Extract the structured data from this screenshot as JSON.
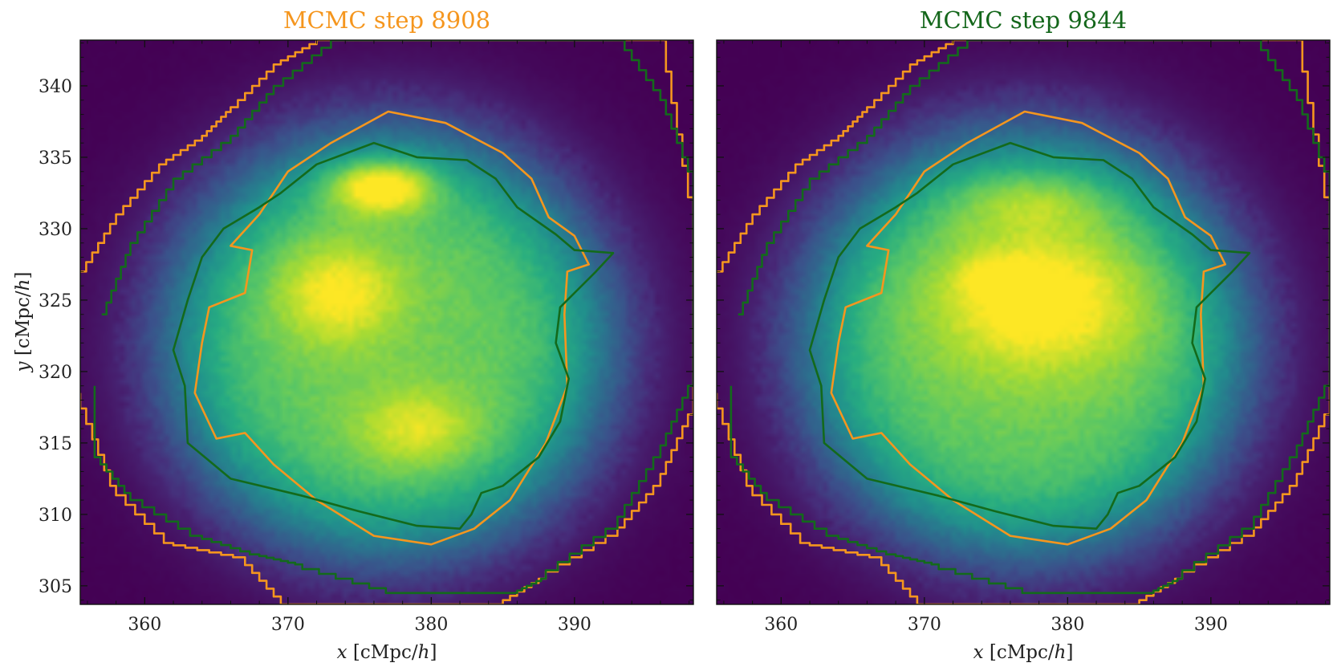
{
  "chart_data": [
    {
      "type": "heatmap",
      "title": "MCMC step 8908",
      "title_color": "#f5961e",
      "xlabel_var": "x",
      "xlabel_unit_pre": " [cMpc/",
      "xlabel_unit_h": "h",
      "xlabel_unit_post": "]",
      "ylabel_var": "y",
      "ylabel_unit_pre": " [cMpc/",
      "ylabel_unit_h": "h",
      "ylabel_unit_post": "]",
      "xlim": [
        355.5,
        398.3
      ],
      "ylim": [
        303.7,
        343.2
      ],
      "xticks": [
        360,
        370,
        380,
        390
      ],
      "xtick_labels": [
        "360",
        "370",
        "380",
        "390"
      ],
      "yticks": [
        305,
        310,
        315,
        320,
        325,
        330,
        335,
        340
      ],
      "ytick_labels": [
        "305",
        "310",
        "315",
        "320",
        "325",
        "330",
        "335",
        "340"
      ],
      "colormap": "viridis",
      "blobs": [
        {
          "x": 377.0,
          "y": 322.0,
          "sx": 12.0,
          "sy": 11.5,
          "w": 1.0
        },
        {
          "x": 376.5,
          "y": 333.0,
          "sx": 2.5,
          "sy": 1.3,
          "w": 0.45
        },
        {
          "x": 373.5,
          "y": 325.5,
          "sx": 3.0,
          "sy": 2.5,
          "w": 0.25
        },
        {
          "x": 379.0,
          "y": 316.0,
          "sx": 3.0,
          "sy": 2.0,
          "w": 0.2
        }
      ],
      "contours": [
        {
          "name": "inner-orange",
          "color": "#f5961e",
          "points": [
            [
              373,
              336
            ],
            [
              377,
              338.2
            ],
            [
              381,
              337.4
            ],
            [
              385,
              335.3
            ],
            [
              387,
              333.5
            ],
            [
              388.2,
              330.8
            ],
            [
              390,
              329.5
            ],
            [
              391,
              327.5
            ],
            [
              389.5,
              327
            ],
            [
              389.3,
              324
            ],
            [
              389.5,
              319
            ],
            [
              388,
              315
            ],
            [
              385.5,
              311
            ],
            [
              383,
              309
            ],
            [
              380,
              307.9
            ],
            [
              376,
              308.5
            ],
            [
              372,
              311
            ],
            [
              369,
              313.5
            ],
            [
              367,
              315.7
            ],
            [
              365,
              315.3
            ],
            [
              363.5,
              318.5
            ],
            [
              364,
              322
            ],
            [
              364.5,
              324.5
            ],
            [
              367,
              325.5
            ],
            [
              367.5,
              328.5
            ],
            [
              366,
              328.8
            ],
            [
              368,
              331
            ],
            [
              370,
              334
            ]
          ]
        },
        {
          "name": "inner-green",
          "color": "#136a1b",
          "points": [
            [
              372,
              334.5
            ],
            [
              376,
              336
            ],
            [
              379,
              335
            ],
            [
              382.5,
              334.8
            ],
            [
              384.5,
              333.5
            ],
            [
              386,
              331.5
            ],
            [
              388.7,
              329.6
            ],
            [
              390,
              328.5
            ],
            [
              392.7,
              328.3
            ],
            [
              391.5,
              327
            ],
            [
              390,
              325.5
            ],
            [
              389,
              324.5
            ],
            [
              388.7,
              322
            ],
            [
              389.6,
              319.5
            ],
            [
              389,
              316.5
            ],
            [
              387.5,
              314
            ],
            [
              385,
              312
            ],
            [
              383.5,
              311.5
            ],
            [
              382.8,
              310
            ],
            [
              382,
              309
            ],
            [
              379,
              309.2
            ],
            [
              375,
              310.2
            ],
            [
              371,
              311.3
            ],
            [
              366,
              312.5
            ],
            [
              363,
              315
            ],
            [
              362.8,
              319
            ],
            [
              362,
              321.5
            ],
            [
              363,
              325
            ],
            [
              364,
              328
            ],
            [
              365.5,
              330
            ],
            [
              368,
              331.5
            ],
            [
              369.5,
              332.5
            ]
          ]
        },
        {
          "name": "outer-orange",
          "color": "#f5961e",
          "points": [
            [
              355.5,
              327
            ],
            [
              358,
              331
            ],
            [
              361,
              334.5
            ],
            [
              364,
              336.5
            ],
            [
              366,
              338.5
            ],
            [
              369,
              341.5
            ],
            [
              372,
              343.2
            ],
            [
              396,
              343.2
            ],
            [
              398.3,
              330
            ],
            [
              398.3,
              317
            ],
            [
              396,
              312
            ],
            [
              393,
              308.5
            ],
            [
              388,
              305.5
            ],
            [
              385,
              303.7
            ],
            [
              370,
              303.7
            ],
            [
              367,
              307
            ],
            [
              362,
              308
            ],
            [
              358,
              312
            ],
            [
              355.5,
              318.5
            ]
          ]
        },
        {
          "name": "outer-green",
          "color": "#136a1b",
          "points": [
            [
              357,
              324
            ],
            [
              359,
              329
            ],
            [
              362,
              333.5
            ],
            [
              366,
              336.5
            ],
            [
              369,
              340
            ],
            [
              373,
              343.2
            ],
            [
              393,
              343.2
            ],
            [
              396,
              339
            ],
            [
              398.3,
              333
            ],
            [
              398.3,
              319
            ],
            [
              396,
              314
            ],
            [
              393,
              309
            ],
            [
              388,
              305.5
            ],
            [
              386,
              304.5
            ],
            [
              378,
              304.5
            ],
            [
              371,
              306.5
            ],
            [
              368,
              307.2
            ],
            [
              364,
              308.5
            ],
            [
              359,
              311.5
            ],
            [
              356.5,
              314.5
            ],
            [
              356.5,
              319
            ]
          ]
        }
      ]
    },
    {
      "type": "heatmap",
      "title": "MCMC step 9844",
      "title_color": "#13661a",
      "xlabel_var": "x",
      "xlabel_unit_pre": " [cMpc/",
      "xlabel_unit_h": "h",
      "xlabel_unit_post": "]",
      "xlim": [
        355.5,
        398.3
      ],
      "ylim": [
        303.7,
        343.2
      ],
      "xticks": [
        360,
        370,
        380,
        390
      ],
      "xtick_labels": [
        "360",
        "370",
        "380",
        "390"
      ],
      "yticks": [
        305,
        310,
        315,
        320,
        325,
        330,
        335,
        340
      ],
      "colormap": "viridis",
      "blobs": [
        {
          "x": 377.0,
          "y": 322.0,
          "sx": 12.0,
          "sy": 11.5,
          "w": 1.0
        },
        {
          "x": 378.0,
          "y": 325.0,
          "sx": 5.0,
          "sy": 3.5,
          "w": 0.3
        },
        {
          "x": 375.0,
          "y": 326.5,
          "sx": 1.5,
          "sy": 0.8,
          "w": 0.2
        },
        {
          "x": 377.5,
          "y": 332.0,
          "sx": 4.0,
          "sy": 1.5,
          "w": 0.15
        }
      ],
      "contours": [
        {
          "name": "inner-orange",
          "color": "#f5961e",
          "points": [
            [
              373,
              336
            ],
            [
              377,
              338.2
            ],
            [
              381,
              337.4
            ],
            [
              385,
              335.3
            ],
            [
              387,
              333.5
            ],
            [
              388.2,
              330.8
            ],
            [
              390,
              329.5
            ],
            [
              391,
              327.5
            ],
            [
              389.5,
              327
            ],
            [
              389.3,
              324
            ],
            [
              389.5,
              319
            ],
            [
              388,
              315
            ],
            [
              385.5,
              311
            ],
            [
              383,
              309
            ],
            [
              380,
              307.9
            ],
            [
              376,
              308.5
            ],
            [
              372,
              311
            ],
            [
              369,
              313.5
            ],
            [
              367,
              315.7
            ],
            [
              365,
              315.3
            ],
            [
              363.5,
              318.5
            ],
            [
              364,
              322
            ],
            [
              364.5,
              324.5
            ],
            [
              367,
              325.5
            ],
            [
              367.5,
              328.5
            ],
            [
              366,
              328.8
            ],
            [
              368,
              331
            ],
            [
              370,
              334
            ]
          ]
        },
        {
          "name": "inner-green",
          "color": "#136a1b",
          "points": [
            [
              372,
              334.5
            ],
            [
              376,
              336
            ],
            [
              379,
              335
            ],
            [
              382.5,
              334.8
            ],
            [
              384.5,
              333.5
            ],
            [
              386,
              331.5
            ],
            [
              388.7,
              329.6
            ],
            [
              390,
              328.5
            ],
            [
              392.7,
              328.3
            ],
            [
              391.5,
              327
            ],
            [
              390,
              325.5
            ],
            [
              389,
              324.5
            ],
            [
              388.7,
              322
            ],
            [
              389.6,
              319.5
            ],
            [
              389,
              316.5
            ],
            [
              387.5,
              314
            ],
            [
              385,
              312
            ],
            [
              383.5,
              311.5
            ],
            [
              382.8,
              310
            ],
            [
              382,
              309
            ],
            [
              379,
              309.2
            ],
            [
              375,
              310.2
            ],
            [
              371,
              311.3
            ],
            [
              366,
              312.5
            ],
            [
              363,
              315
            ],
            [
              362.8,
              319
            ],
            [
              362,
              321.5
            ],
            [
              363,
              325
            ],
            [
              364,
              328
            ],
            [
              365.5,
              330
            ],
            [
              368,
              331.5
            ],
            [
              369.5,
              332.5
            ]
          ]
        },
        {
          "name": "outer-orange",
          "color": "#f5961e",
          "points": [
            [
              355.5,
              327
            ],
            [
              358,
              331
            ],
            [
              361,
              334.5
            ],
            [
              364,
              336.5
            ],
            [
              366,
              338.5
            ],
            [
              369,
              341.5
            ],
            [
              372,
              343.2
            ],
            [
              396,
              343.2
            ],
            [
              398.3,
              330
            ],
            [
              398.3,
              317
            ],
            [
              396,
              312
            ],
            [
              393,
              308.5
            ],
            [
              388,
              305.5
            ],
            [
              385,
              303.7
            ],
            [
              370,
              303.7
            ],
            [
              367,
              307
            ],
            [
              362,
              308
            ],
            [
              358,
              312
            ],
            [
              355.5,
              318.5
            ]
          ]
        },
        {
          "name": "outer-green",
          "color": "#136a1b",
          "points": [
            [
              357,
              324
            ],
            [
              359,
              329
            ],
            [
              362,
              333.5
            ],
            [
              366,
              336.5
            ],
            [
              369,
              340
            ],
            [
              373,
              343.2
            ],
            [
              393,
              343.2
            ],
            [
              396,
              339
            ],
            [
              398.3,
              333
            ],
            [
              398.3,
              319
            ],
            [
              396,
              314
            ],
            [
              393,
              309
            ],
            [
              388,
              305.5
            ],
            [
              386,
              304.5
            ],
            [
              378,
              304.5
            ],
            [
              371,
              306.5
            ],
            [
              368,
              307.2
            ],
            [
              364,
              308.5
            ],
            [
              359,
              311.5
            ],
            [
              356.5,
              314.5
            ],
            [
              356.5,
              319
            ]
          ]
        }
      ]
    }
  ]
}
